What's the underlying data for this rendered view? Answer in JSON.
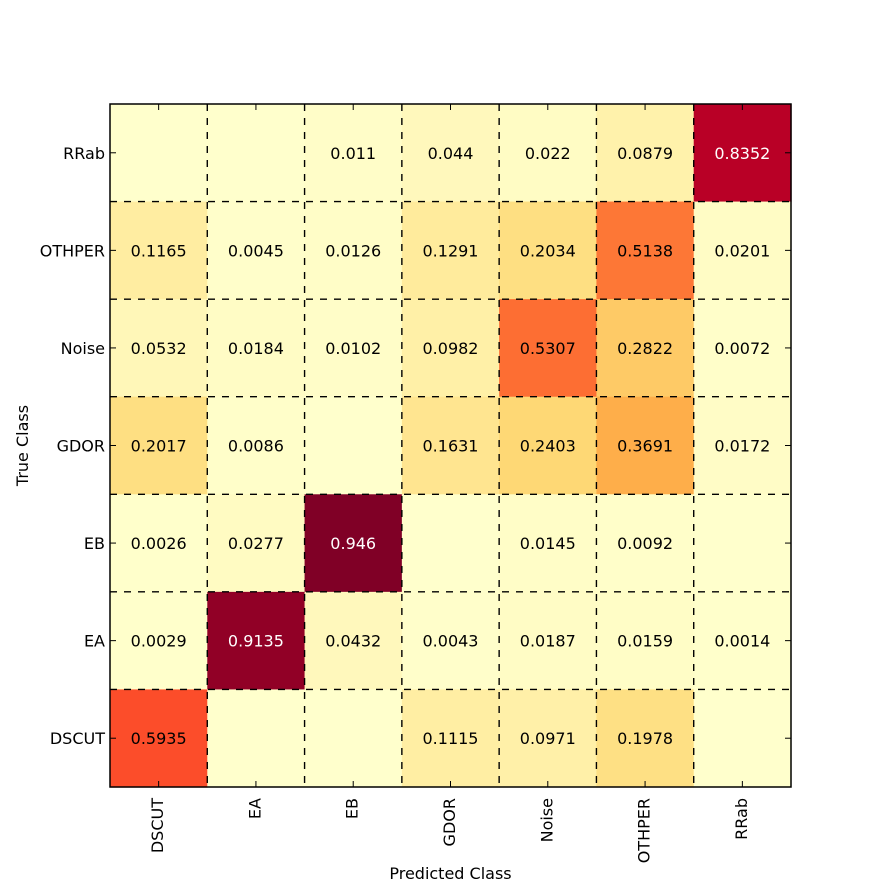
{
  "chart_data": {
    "type": "heatmap",
    "title": "",
    "xlabel": "Predicted Class",
    "ylabel": "True Class",
    "x_categories": [
      "DSCUT",
      "EA",
      "EB",
      "GDOR",
      "Noise",
      "OTHPER",
      "RRab"
    ],
    "y_categories_top_to_bottom": [
      "RRab",
      "OTHPER",
      "Noise",
      "GDOR",
      "EB",
      "EA",
      "DSCUT"
    ],
    "values_top_to_bottom": [
      [
        null,
        null,
        0.011,
        0.044,
        0.022,
        0.0879,
        0.8352
      ],
      [
        0.1165,
        0.0045,
        0.0126,
        0.1291,
        0.2034,
        0.5138,
        0.0201
      ],
      [
        0.0532,
        0.0184,
        0.0102,
        0.0982,
        0.5307,
        0.2822,
        0.0072
      ],
      [
        0.2017,
        0.0086,
        null,
        0.1631,
        0.2403,
        0.3691,
        0.0172
      ],
      [
        0.0026,
        0.0277,
        0.946,
        null,
        0.0145,
        0.0092,
        null
      ],
      [
        0.0029,
        0.9135,
        0.0432,
        0.0043,
        0.0187,
        0.0159,
        0.0014
      ],
      [
        0.5935,
        null,
        null,
        0.1115,
        0.0971,
        0.1978,
        null
      ]
    ],
    "value_labels_top_to_bottom": [
      [
        "",
        "",
        "0.011",
        "0.044",
        "0.022",
        "0.0879",
        "0.8352"
      ],
      [
        "0.1165",
        "0.0045",
        "0.0126",
        "0.1291",
        "0.2034",
        "0.5138",
        "0.0201"
      ],
      [
        "0.0532",
        "0.0184",
        "0.0102",
        "0.0982",
        "0.5307",
        "0.2822",
        "0.0072"
      ],
      [
        "0.2017",
        "0.0086",
        "",
        "0.1631",
        "0.2403",
        "0.3691",
        "0.0172"
      ],
      [
        "0.0026",
        "0.0277",
        "0.946",
        "",
        "0.0145",
        "0.0092",
        ""
      ],
      [
        "0.0029",
        "0.9135",
        "0.0432",
        "0.0043",
        "0.0187",
        "0.0159",
        "0.0014"
      ],
      [
        "0.5935",
        "",
        "",
        "0.1115",
        "0.0971",
        "0.1978",
        ""
      ]
    ],
    "colormap": "YlOrRd",
    "grid": true,
    "grid_style": "dashed"
  }
}
